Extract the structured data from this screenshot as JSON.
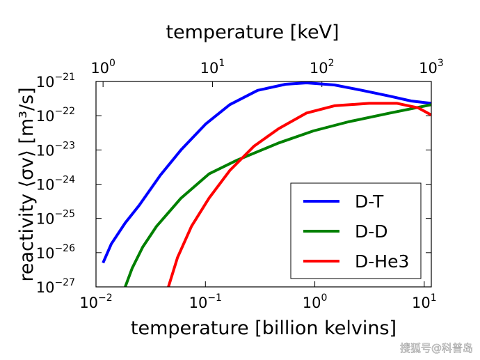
{
  "chart_data": {
    "type": "line",
    "xlabel": "temperature  [billion kelvins]",
    "x2label": "temperature  [keV]",
    "ylabel": "reactivity ⟨σv⟩  [m³/s]",
    "xscale": "log",
    "yscale": "log",
    "xlim": [
      0.01,
      11.6
    ],
    "x2lim": [
      0.862,
      1000
    ],
    "ylim": [
      1e-27,
      1e-21
    ],
    "xticks": [
      {
        "value": 0.01,
        "label": "10",
        "exponent": "−2"
      },
      {
        "value": 0.1,
        "label": "10",
        "exponent": "−1"
      },
      {
        "value": 1,
        "label": "10",
        "exponent": "0"
      },
      {
        "value": 10,
        "label": "10",
        "exponent": "1"
      }
    ],
    "x2ticks": [
      {
        "value": 1,
        "label": "10",
        "exponent": "0"
      },
      {
        "value": 10,
        "label": "10",
        "exponent": "1"
      },
      {
        "value": 100,
        "label": "10",
        "exponent": "2"
      },
      {
        "value": 1000,
        "label": "10",
        "exponent": "3"
      }
    ],
    "yticks": [
      {
        "value": 1e-27,
        "label": "10",
        "exponent": "−27"
      },
      {
        "value": 1e-26,
        "label": "10",
        "exponent": "−26"
      },
      {
        "value": 1e-25,
        "label": "10",
        "exponent": "−25"
      },
      {
        "value": 1e-24,
        "label": "10",
        "exponent": "−24"
      },
      {
        "value": 1e-23,
        "label": "10",
        "exponent": "−23"
      },
      {
        "value": 1e-22,
        "label": "10",
        "exponent": "−22"
      },
      {
        "value": 1e-21,
        "label": "10",
        "exponent": "−21"
      }
    ],
    "legend": "lower right",
    "series": [
      {
        "name": "D-T",
        "color": "#0000ff",
        "x": [
          0.0116,
          0.0138,
          0.0185,
          0.0248,
          0.0386,
          0.0598,
          0.101,
          0.167,
          0.3,
          0.54,
          0.84,
          1.51,
          2.71,
          4.87,
          7.57,
          11.6
        ],
        "values": [
          5e-27,
          1.8e-26,
          7.4e-26,
          2.4e-25,
          1.8e-24,
          1e-23,
          5.8e-23,
          2.1e-22,
          5.5e-22,
          8.3e-22,
          9.1e-22,
          7.9e-22,
          5.5e-22,
          3.7e-22,
          2.7e-22,
          2.3e-22
        ]
      },
      {
        "name": "D-D",
        "color": "#008000",
        "x": [
          0.0185,
          0.0214,
          0.0267,
          0.0358,
          0.0598,
          0.108,
          0.194,
          0.467,
          0.97,
          2.02,
          4.87,
          11.6
        ],
        "values": [
          1e-27,
          3.5e-27,
          1.45e-26,
          5.9e-26,
          3.9e-25,
          2e-24,
          5e-24,
          1.6e-23,
          3.6e-23,
          6.6e-23,
          1.2e-22,
          2.1e-22
        ]
      },
      {
        "name": "D-He3",
        "color": "#ff0000",
        "x": [
          0.0459,
          0.0556,
          0.0746,
          0.108,
          0.167,
          0.279,
          0.467,
          0.84,
          1.51,
          3.14,
          5.65,
          8.77,
          11.6
        ],
        "values": [
          1e-27,
          7.2e-27,
          5.9e-26,
          3.9e-25,
          2.5e-24,
          1.3e-23,
          4.2e-23,
          1.2e-22,
          1.95e-22,
          2.3e-22,
          2.3e-22,
          1.7e-22,
          1.05e-22
        ]
      }
    ],
    "watermark": "搜狐号@科普岛"
  }
}
